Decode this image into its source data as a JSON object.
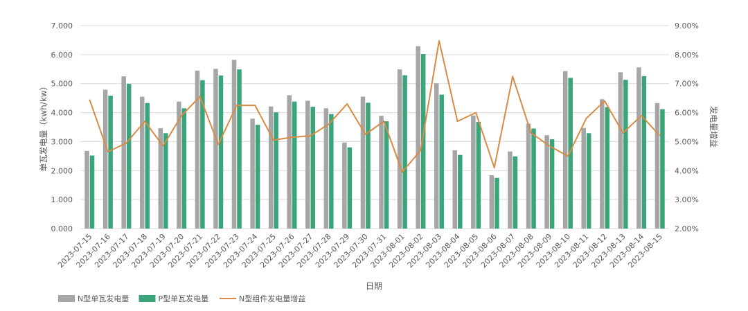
{
  "chart_data": {
    "type": "bar",
    "xlabel": "日期",
    "ylabel": "单瓦发电量（kwh/kw）",
    "y2label": "发电量增益",
    "ylim": [
      0,
      7
    ],
    "y2lim": [
      0.02,
      0.09
    ],
    "yticks": [
      "0.000",
      "1.000",
      "2.000",
      "3.000",
      "4.000",
      "5.000",
      "6.000",
      "7.000"
    ],
    "y2ticks": [
      "2.00%",
      "3.00%",
      "4.00%",
      "5.00%",
      "6.00%",
      "7.00%",
      "8.00%",
      "9.00%"
    ],
    "grid": true,
    "legend_position": "bottom-left",
    "categories": [
      "2023-07-15",
      "2023-07-16",
      "2023-07-17",
      "2023-07-18",
      "2023-07-19",
      "2023-07-20",
      "2023-07-21",
      "2023-07-22",
      "2023-07-23",
      "2023-07-24",
      "2023-07-25",
      "2023-07-26",
      "2023-07-27",
      "2023-07-28",
      "2023-07-29",
      "2023-07-30",
      "2023-07-31",
      "2023-08-01",
      "2023-08-02",
      "2023-08-03",
      "2023-08-04",
      "2023-08-05",
      "2023-08-06",
      "2023-08-07",
      "2023-08-08",
      "2023-08-09",
      "2023-08-10",
      "2023-08-11",
      "2023-08-12",
      "2023-08-13",
      "2023-08-14",
      "2023-08-15"
    ],
    "series": [
      {
        "name": "N型单瓦发电量",
        "type": "bar",
        "color": "#a6a6a6",
        "axis": "left",
        "values": [
          2.68,
          4.79,
          5.25,
          4.55,
          3.46,
          4.38,
          5.45,
          5.51,
          5.82,
          3.79,
          4.21,
          4.6,
          4.41,
          4.15,
          2.97,
          4.55,
          3.89,
          5.49,
          6.29,
          5.01,
          2.7,
          3.9,
          1.84,
          2.66,
          3.62,
          3.22,
          5.43,
          3.47,
          4.46,
          5.39,
          5.56,
          4.33
        ]
      },
      {
        "name": "P型单瓦发电量",
        "type": "bar",
        "color": "#3aa57a",
        "axis": "left",
        "values": [
          2.52,
          4.58,
          4.99,
          4.33,
          3.29,
          4.15,
          5.12,
          5.28,
          5.49,
          3.58,
          4.01,
          4.38,
          4.2,
          3.95,
          2.8,
          4.34,
          3.7,
          5.29,
          6.02,
          4.62,
          2.54,
          3.68,
          1.75,
          2.49,
          3.45,
          3.08,
          5.2,
          3.29,
          4.19,
          5.13,
          5.26,
          4.12
        ]
      },
      {
        "name": "N型组件发电量增益",
        "type": "line",
        "color": "#d98a45",
        "axis": "right",
        "values": [
          0.0645,
          0.0465,
          0.0495,
          0.057,
          0.0485,
          0.059,
          0.0655,
          0.049,
          0.0625,
          0.0625,
          0.0505,
          0.0515,
          0.052,
          0.056,
          0.063,
          0.0525,
          0.057,
          0.0395,
          0.047,
          0.0848,
          0.057,
          0.06,
          0.041,
          0.0725,
          0.053,
          0.0485,
          0.045,
          0.058,
          0.064,
          0.053,
          0.059,
          0.052
        ]
      }
    ]
  }
}
